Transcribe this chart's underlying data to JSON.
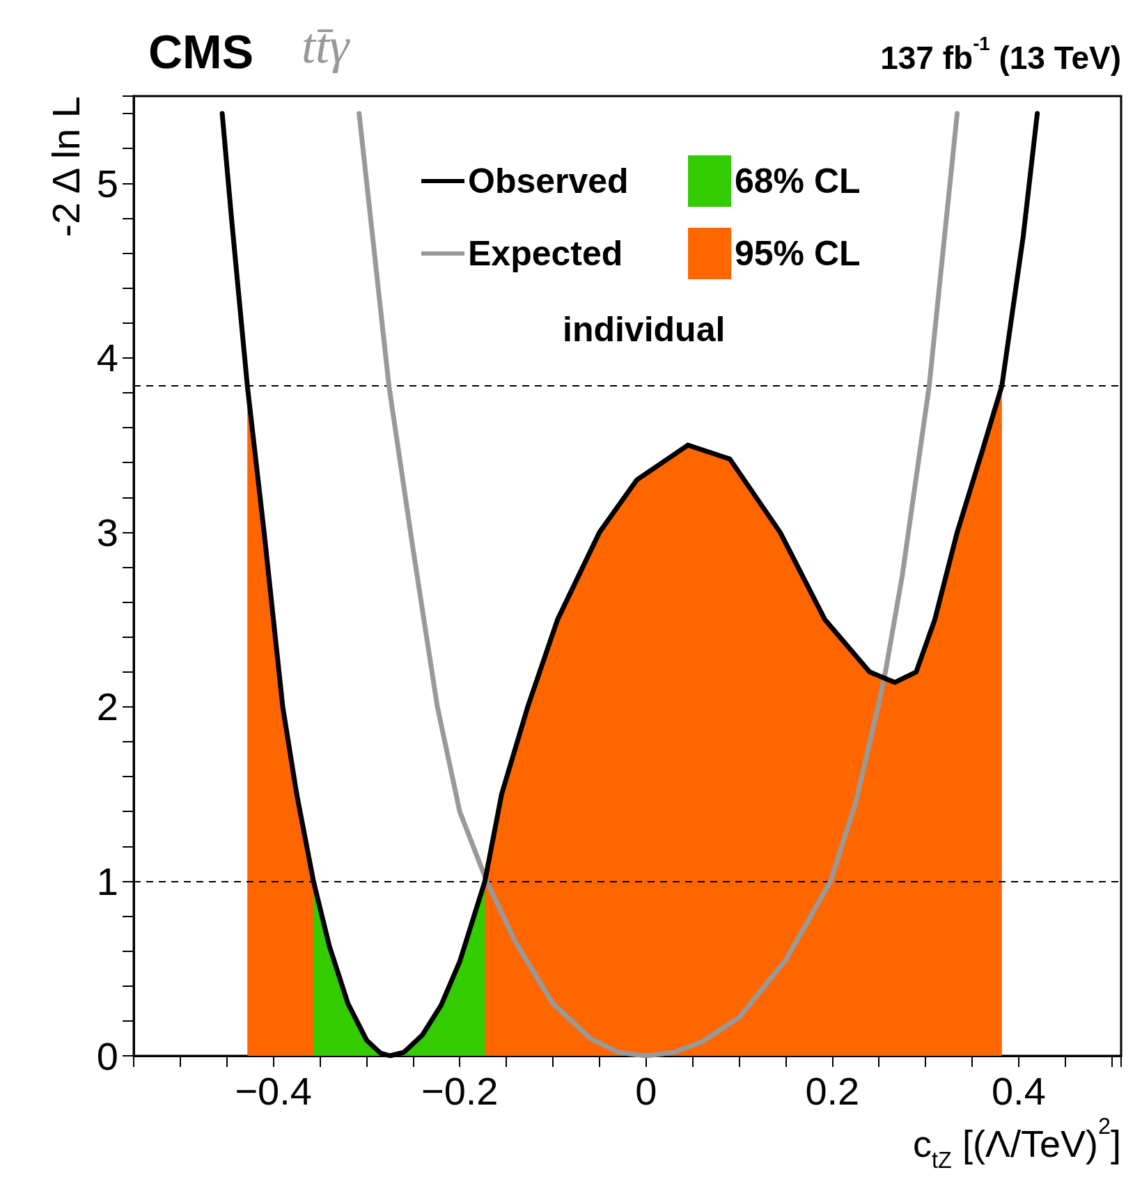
{
  "chart_data": {
    "type": "line",
    "title": "CMS",
    "subtitle": "tt̄γ",
    "xlabel": "c$_{tZ}$ [(Λ/TeV)$^{2}$]",
    "ylabel": "-2 Δ ln L",
    "annotations": [
      "137 fb$^{-1}$ (13 TeV)",
      "individual"
    ],
    "series": [
      {
        "name": "Observed",
        "color": "#000000",
        "x": [
          -0.455,
          -0.445,
          -0.428,
          -0.41,
          -0.39,
          -0.375,
          -0.357,
          -0.34,
          -0.32,
          -0.3,
          -0.285,
          -0.275,
          -0.26,
          -0.24,
          -0.22,
          -0.2,
          -0.173,
          -0.155,
          -0.127,
          -0.095,
          -0.05,
          -0.01,
          0.045,
          0.09,
          0.144,
          0.192,
          0.24,
          0.267,
          0.29,
          0.31,
          0.334,
          0.36,
          0.382,
          0.405,
          0.42
        ],
        "values": [
          5.4,
          4.8,
          3.84,
          3.0,
          2.0,
          1.5,
          1.0,
          0.63,
          0.3,
          0.09,
          0.015,
          0,
          0.02,
          0.12,
          0.29,
          0.54,
          1.0,
          1.5,
          2.0,
          2.5,
          3.0,
          3.3,
          3.5,
          3.42,
          3.0,
          2.5,
          2.2,
          2.14,
          2.2,
          2.5,
          3.0,
          3.45,
          3.84,
          4.7,
          5.4
        ]
      },
      {
        "name": "Expected",
        "color": "#999999",
        "x": [
          -0.308,
          -0.276,
          -0.25,
          -0.224,
          -0.2,
          -0.171,
          -0.14,
          -0.1,
          -0.06,
          -0.03,
          0,
          0.03,
          0.06,
          0.1,
          0.15,
          0.198,
          0.225,
          0.249,
          0.257,
          0.275,
          0.304,
          0.334
        ],
        "values": [
          5.4,
          3.84,
          2.9,
          2.0,
          1.4,
          1.0,
          0.65,
          0.3,
          0.1,
          0.02,
          0,
          0.02,
          0.08,
          0.22,
          0.55,
          1.0,
          1.45,
          2.0,
          2.2,
          2.75,
          3.84,
          5.4
        ]
      },
      {
        "name": "68% CL",
        "type": "area",
        "color": "#33cc00",
        "x": [
          -0.357,
          -0.34,
          -0.32,
          -0.3,
          -0.285,
          -0.275,
          -0.26,
          -0.24,
          -0.22,
          -0.2,
          -0.173
        ],
        "values": [
          1.0,
          0.63,
          0.3,
          0.09,
          0.015,
          0,
          0.02,
          0.12,
          0.29,
          0.54,
          1.0
        ]
      },
      {
        "name": "95% CL",
        "type": "area",
        "color": "#ff6600",
        "x": [
          -0.428,
          -0.41,
          -0.39,
          -0.375,
          -0.357,
          -0.34,
          -0.32,
          -0.3,
          -0.285,
          -0.275,
          -0.26,
          -0.24,
          -0.22,
          -0.2,
          -0.173,
          -0.155,
          -0.127,
          -0.095,
          -0.05,
          -0.01,
          0.045,
          0.09,
          0.144,
          0.192,
          0.24,
          0.267,
          0.29,
          0.31,
          0.334,
          0.36,
          0.382
        ],
        "values": [
          3.84,
          3.0,
          2.0,
          1.5,
          1.0,
          0.63,
          0.3,
          0.09,
          0.015,
          0,
          0.02,
          0.12,
          0.29,
          0.54,
          1.0,
          1.5,
          2.0,
          2.5,
          3.0,
          3.3,
          3.5,
          3.42,
          3.0,
          2.5,
          2.2,
          2.14,
          2.2,
          2.5,
          3.0,
          3.45,
          3.84
        ]
      }
    ],
    "ref_lines": [
      {
        "axis": "y",
        "value": 1,
        "line_style": "dashed"
      },
      {
        "axis": "y",
        "value": 3.84,
        "line_style": "dashed"
      }
    ],
    "xlim": [
      -0.55,
      0.51
    ],
    "xticks": [
      {
        "value": -0.5,
        "label": null
      },
      {
        "value": -0.45,
        "label": null
      },
      {
        "value": -0.4,
        "label": "−0.4"
      },
      {
        "value": -0.35,
        "label": null
      },
      {
        "value": -0.3,
        "label": null
      },
      {
        "value": -0.25,
        "label": null
      },
      {
        "value": -0.2,
        "label": "−0.2"
      },
      {
        "value": -0.15,
        "label": null
      },
      {
        "value": -0.1,
        "label": null
      },
      {
        "value": -0.05,
        "label": null
      },
      0,
      {
        "value": 0.05,
        "label": null
      },
      {
        "value": 0.1,
        "label": null
      },
      {
        "value": 0.15,
        "label": null
      },
      0.2,
      {
        "value": 0.25,
        "label": null
      },
      {
        "value": 0.3,
        "label": null
      },
      {
        "value": 0.35,
        "label": null
      },
      0.4,
      {
        "value": 0.45,
        "label": null
      },
      {
        "value": 0.5,
        "label": null
      }
    ],
    "ylim": [
      0,
      5.5
    ],
    "yticks": [
      0,
      {
        "value": 0.2,
        "label": null
      },
      {
        "value": 0.4,
        "label": null
      },
      {
        "value": 0.6,
        "label": null
      },
      {
        "value": 0.8,
        "label": null
      },
      1,
      {
        "value": 1.2,
        "label": null
      },
      {
        "value": 1.4,
        "label": null
      },
      {
        "value": 1.6,
        "label": null
      },
      {
        "value": 1.8,
        "label": null
      },
      2,
      {
        "value": 2.2,
        "label": null
      },
      {
        "value": 2.4,
        "label": null
      },
      {
        "value": 2.6,
        "label": null
      },
      {
        "value": 2.8,
        "label": null
      },
      3,
      {
        "value": 3.2,
        "label": null
      },
      {
        "value": 3.4,
        "label": null
      },
      {
        "value": 3.6,
        "label": null
      },
      {
        "value": 3.8,
        "label": null
      },
      4,
      {
        "value": 4.2,
        "label": null
      },
      {
        "value": 4.4,
        "label": null
      },
      {
        "value": 4.6,
        "label": null
      },
      {
        "value": 4.8,
        "label": null
      },
      5,
      {
        "value": 5.2,
        "label": null
      },
      {
        "value": 5.4,
        "label": null
      }
    ],
    "grid": false,
    "legend": "top",
    "marker": "none",
    "line_style": "solid"
  }
}
